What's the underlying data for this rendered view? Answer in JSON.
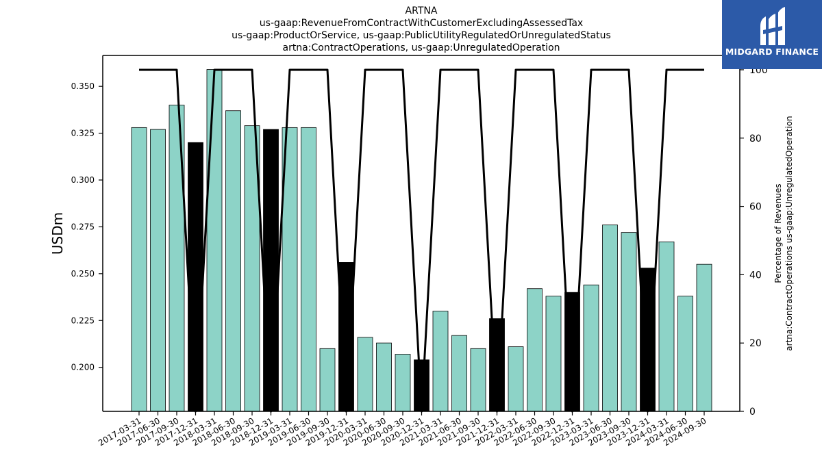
{
  "chart_data": {
    "type": "bar",
    "title": [
      "ARTNA",
      "us-gaap:RevenueFromContractWithCustomerExcludingAssessedTax",
      "us-gaap:ProductOrService, us-gaap:PublicUtilityRegulatedOrUnregulatedStatus",
      "artna:ContractOperations, us-gaap:UnregulatedOperation"
    ],
    "ylabel": "USDm",
    "y2label": [
      "Percentage of Revenues",
      "artna:ContractOperations us-gaap:UnregulatedOperation"
    ],
    "ylim": [
      0.1765,
      0.3665
    ],
    "y2lim": [
      0,
      104.2
    ],
    "yticks": [
      0.2,
      0.225,
      0.25,
      0.275,
      0.3,
      0.325,
      0.35
    ],
    "ytick_labels": [
      "0.200",
      "0.225",
      "0.250",
      "0.275",
      "0.300",
      "0.325",
      "0.350"
    ],
    "y2ticks": [
      0,
      20,
      40,
      60,
      80,
      100
    ],
    "categories": [
      "2017-03-31",
      "2017-06-30",
      "2017-09-30",
      "2017-12-31",
      "2018-03-31",
      "2018-06-30",
      "2018-09-30",
      "2018-12-31",
      "2019-03-31",
      "2019-06-30",
      "2019-09-30",
      "2019-12-31",
      "2020-03-31",
      "2020-06-30",
      "2020-09-30",
      "2020-12-31",
      "2021-03-31",
      "2021-06-30",
      "2021-09-30",
      "2021-12-31",
      "2022-03-31",
      "2022-06-30",
      "2022-09-30",
      "2022-12-31",
      "2023-03-31",
      "2023-06-30",
      "2023-09-30",
      "2023-12-31",
      "2024-03-31",
      "2024-06-30",
      "2024-09-30"
    ],
    "values": [
      0.328,
      0.327,
      0.34,
      0.32,
      0.359,
      0.337,
      0.329,
      0.327,
      0.328,
      0.328,
      0.21,
      0.256,
      0.216,
      0.213,
      0.207,
      0.204,
      0.23,
      0.217,
      0.21,
      0.226,
      0.211,
      0.242,
      0.238,
      0.24,
      0.244,
      0.276,
      0.272,
      0.253,
      0.267,
      0.238,
      0.255
    ],
    "highlight": [
      false,
      false,
      false,
      true,
      false,
      false,
      false,
      true,
      false,
      false,
      false,
      true,
      false,
      false,
      false,
      true,
      false,
      false,
      false,
      true,
      false,
      false,
      false,
      true,
      false,
      false,
      false,
      true,
      false,
      false,
      false
    ],
    "line_values": [
      100,
      100,
      100,
      0,
      100,
      100,
      100,
      0,
      100,
      100,
      100,
      0,
      100,
      100,
      100,
      0,
      100,
      100,
      100,
      0,
      100,
      100,
      100,
      0,
      100,
      100,
      100,
      0,
      100,
      100,
      100
    ],
    "colors": {
      "bar": "#8dd3c7",
      "highlight": "#000000",
      "line": "#000000"
    }
  },
  "logo": {
    "text": "MIDGARD FINANCE",
    "background": "#2c5aa8"
  }
}
